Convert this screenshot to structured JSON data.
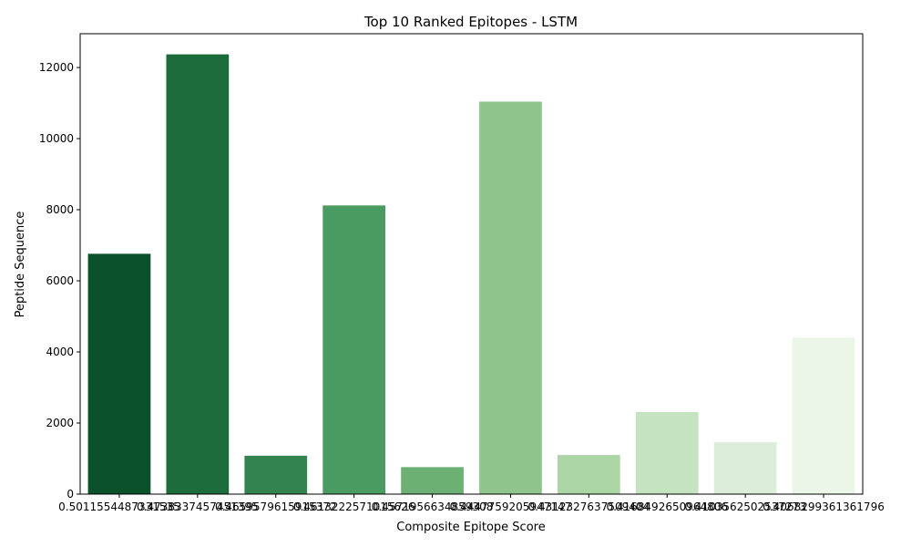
{
  "chart_data": {
    "type": "bar",
    "title": "Top 10 Ranked Epitopes - LSTM",
    "xlabel": "Composite Epitope Score",
    "ylabel": "Peptide Sequence",
    "ylim": [
      0,
      12950
    ],
    "yticks": [
      0,
      2000,
      4000,
      6000,
      8000,
      10000,
      12000
    ],
    "ytick_labels": [
      "0",
      "2000",
      "4000",
      "6000",
      "8000",
      "10000",
      "12000"
    ],
    "grid": false,
    "legend": "none",
    "categories": [
      "0.5011554487331535",
      "0.4738337457451395",
      "0.4659579615915372",
      "0.4613222571015626",
      "0.4571956634859308",
      "0.4447759205947147",
      "0.4312327637509404",
      "0.4168492650964806",
      "0.4103562502537273",
      "0.4068299361361796"
    ],
    "values": [
      6760,
      12370,
      1080,
      8120,
      760,
      11040,
      1100,
      2310,
      1460,
      4400
    ],
    "colors": [
      "#0b5129",
      "#1b6c3a",
      "#33834f",
      "#4a9b62",
      "#6cb073",
      "#90c48d",
      "#acd6a5",
      "#c6e3c1",
      "#dbeeda",
      "#ebf6e8"
    ]
  }
}
